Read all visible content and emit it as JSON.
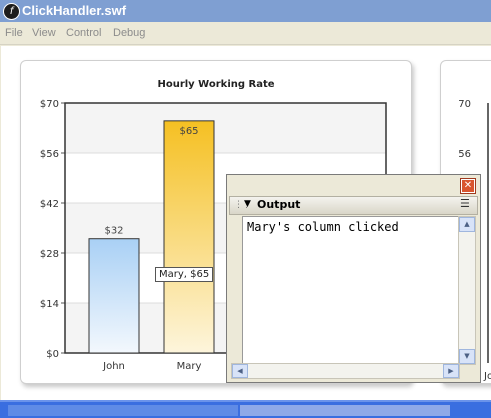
{
  "window": {
    "title": "ClickHandler.swf",
    "app_icon": "flash-player-icon"
  },
  "menu": [
    "File",
    "View",
    "Control",
    "Debug"
  ],
  "chart_data": {
    "type": "bar",
    "title": "Hourly Working Rate",
    "categories": [
      "John",
      "Mary"
    ],
    "values": [
      32,
      65
    ],
    "data_labels": [
      "$32",
      "$65"
    ],
    "ylim": [
      0,
      70
    ],
    "yticks": [
      "$0",
      "$14",
      "$28",
      "$42",
      "$56",
      "$70"
    ],
    "grid": true,
    "bar_colors": [
      "#a9d0f5",
      "#f5c022"
    ]
  },
  "tooltip": "Mary, $65",
  "second_chart": {
    "yticks": [
      "70",
      "56"
    ],
    "xtick_fragment": "Jo"
  },
  "output_panel": {
    "title": "Output",
    "text": "Mary's column clicked",
    "close_symbol": "✕"
  }
}
